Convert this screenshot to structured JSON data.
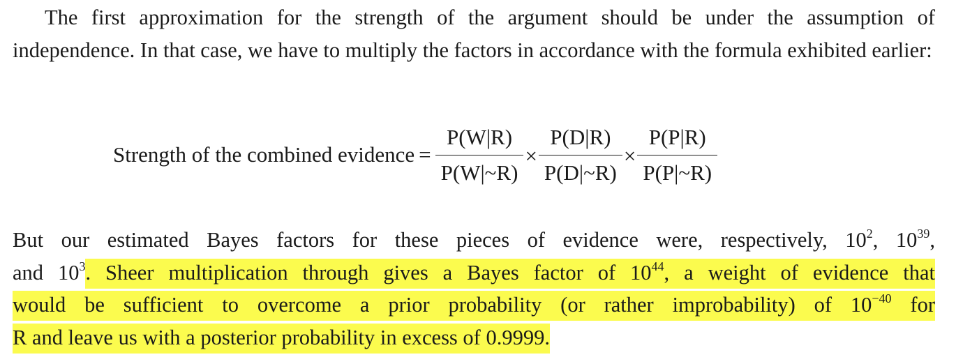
{
  "paragraph1": "The first approximation for the strength of the argument should be under the assumption of independence. In that case, we have to multiply the factors in accordance with the formula exhibited earlier:",
  "formula": {
    "lhs": "Strength of the combined evidence",
    "equals": "=",
    "times": "×",
    "fractions": [
      {
        "numerator": "P(W|R)",
        "denominator": "P(W|~R)"
      },
      {
        "numerator": "P(D|R)",
        "denominator": "P(D|~R)"
      },
      {
        "numerator": "P(P|R)",
        "denominator": "P(P|~R)"
      }
    ]
  },
  "paragraph2": {
    "line1_a": "But our estimated Bayes factors for these pieces of evidence were, respectively, 10",
    "exp_1": "2",
    "sep_1": ", 10",
    "exp_2": "39",
    "sep_2": ",",
    "line2_a": "and 10",
    "exp_3": "3",
    "line2_b": ". Sheer multiplication through gives a Bayes factor of 10",
    "exp_4": "44",
    "line2_c": ", a weight of evidence that",
    "line3_a": "would be sufficient to overcome a prior probability (or rather improbability) of 10",
    "exp_5": "−40",
    "line3_b": " for",
    "line4": "R and leave us with a posterior probability in excess of 0.9999."
  },
  "highlight_color": "#fbfb4e"
}
